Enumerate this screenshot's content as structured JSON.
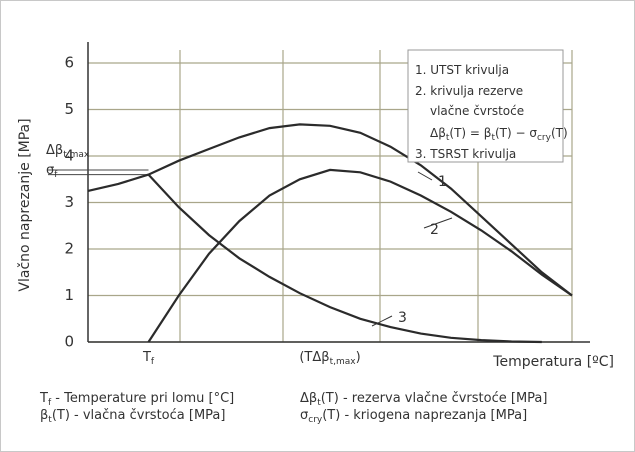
{
  "chart_data": {
    "type": "line",
    "ylabel": "Vlačno naprezanje [MPa]",
    "xlabel": "Temperatura [ºC]",
    "categories": [
      null,
      null,
      [
        "T",
        "f"
      ],
      null,
      null,
      null,
      null,
      null,
      [
        "(TΔβ",
        "t,max",
        ")"
      ],
      null,
      null,
      null,
      null,
      null,
      null,
      null,
      null
    ],
    "ylim": [
      0,
      6
    ],
    "yticks": [
      0,
      1,
      2,
      3,
      4,
      5,
      6
    ],
    "grid": true,
    "series": [
      {
        "name": "1",
        "color": "#2b2b2b",
        "values": [
          3.25,
          3.4,
          3.6,
          3.9,
          4.15,
          4.4,
          4.6,
          4.68,
          4.65,
          4.5,
          4.2,
          3.8,
          3.3,
          2.7,
          2.1,
          1.5,
          1.0
        ]
      },
      {
        "name": "2",
        "color": "#2b2b2b",
        "values": [
          null,
          null,
          0,
          1.0,
          1.9,
          2.6,
          3.15,
          3.5,
          3.7,
          3.65,
          3.45,
          3.15,
          2.8,
          2.4,
          1.95,
          1.45,
          1.0
        ]
      },
      {
        "name": "3",
        "color": "#2b2b2b",
        "values": [
          null,
          null,
          3.6,
          2.9,
          2.3,
          1.8,
          1.4,
          1.05,
          0.75,
          0.5,
          0.32,
          0.18,
          0.09,
          0.04,
          0.01,
          0,
          null
        ]
      }
    ],
    "y_annotations": [
      {
        "label": [
          "Δβ",
          "t,max"
        ],
        "value": 3.7
      },
      {
        "label": [
          "σ",
          "f"
        ],
        "value": 3.6
      }
    ],
    "legend": [
      [
        "1. UTST krivulja"
      ],
      [
        "2. krivulja rezerve"
      ],
      [
        "vlačne čvrstoće"
      ],
      [
        "Δβ",
        "t",
        "(T) = β",
        "t",
        "(T) − σ",
        "cry",
        "(T)"
      ],
      [
        "3. TSRST krivulja"
      ]
    ],
    "notes": [
      [
        "T",
        "f",
        " - Temperature pri lomu [°C]"
      ],
      [
        "Δβ",
        "t",
        "(T) - rezerva vlačne čvrstoće [MPa]"
      ],
      [
        "β",
        "t",
        "(T) - vlačna čvrstoća [MPa]"
      ],
      [
        "σ",
        "cry",
        "(T) - kriogena naprezanja [MPa]"
      ]
    ]
  }
}
